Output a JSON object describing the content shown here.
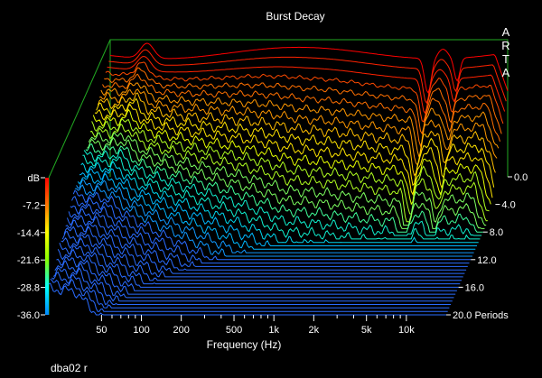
{
  "chart_data": {
    "type": "waterfall",
    "title": "Burst Decay",
    "xlabel": "Frequency (Hz)",
    "zlabel": "Periods",
    "ylabel": "dB",
    "brand": "ARTA",
    "footer": "dba02 r",
    "x_scale": "log",
    "x_range": [
      20,
      20000
    ],
    "x_ticks": [
      {
        "value": 50,
        "label": "50"
      },
      {
        "value": 100,
        "label": "100"
      },
      {
        "value": 200,
        "label": "200"
      },
      {
        "value": 500,
        "label": "500"
      },
      {
        "value": 1000,
        "label": "1k"
      },
      {
        "value": 2000,
        "label": "2k"
      },
      {
        "value": 5000,
        "label": "5k"
      },
      {
        "value": 10000,
        "label": "10k"
      }
    ],
    "z_ticks": [
      {
        "value": 0,
        "label": "0.0"
      },
      {
        "value": 4,
        "label": "4.0"
      },
      {
        "value": 8,
        "label": "8.0"
      },
      {
        "value": 12,
        "label": "12.0"
      },
      {
        "value": 16,
        "label": "16.0"
      },
      {
        "value": 20,
        "label": "20.0 Periods"
      }
    ],
    "z_range": [
      0,
      20
    ],
    "y_range": [
      -36,
      0
    ],
    "y_ticks": [
      "dB",
      "-7.2",
      "-14.4",
      "-21.6",
      "-28.8",
      "-36.0"
    ],
    "colorbar": [
      "#ff0000",
      "#ff7700",
      "#ffff00",
      "#88ff00",
      "#00ffff",
      "#0088ff"
    ],
    "frame_color": "#22aa22"
  }
}
